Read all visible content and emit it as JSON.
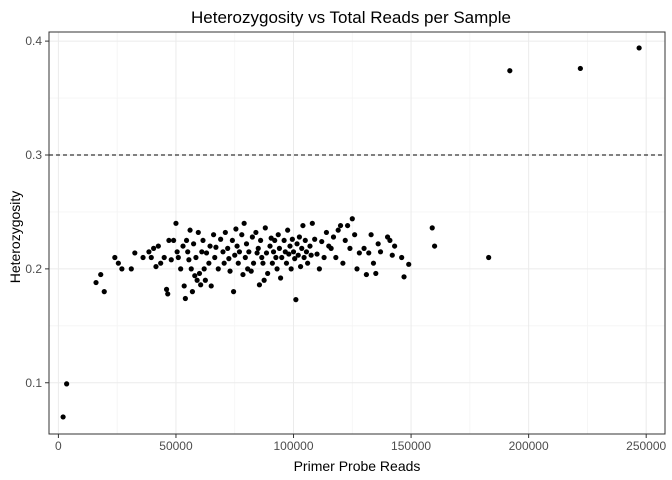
{
  "chart_data": {
    "type": "scatter",
    "title": "Heterozygosity vs Total Reads per Sample",
    "xlabel": "Primer Probe Reads",
    "ylabel": "Heterozygosity",
    "xlim": [
      -4000,
      258000
    ],
    "ylim": [
      0.055,
      0.408
    ],
    "x_ticks": [
      0,
      50000,
      100000,
      150000,
      200000,
      250000
    ],
    "x_tick_labels": [
      "0",
      "50000",
      "100000",
      "150000",
      "200000",
      "250000"
    ],
    "y_ticks": [
      0.1,
      0.2,
      0.3,
      0.4
    ],
    "y_tick_labels": [
      "0.1",
      "0.2",
      "0.3",
      "0.4"
    ],
    "grid": true,
    "reference_line": {
      "y": 0.3,
      "style": "dashed"
    },
    "points": [
      [
        2000,
        0.07
      ],
      [
        3500,
        0.099
      ],
      [
        16000,
        0.188
      ],
      [
        18000,
        0.195
      ],
      [
        19500,
        0.18
      ],
      [
        24000,
        0.21
      ],
      [
        25500,
        0.205
      ],
      [
        27000,
        0.2
      ],
      [
        31000,
        0.2
      ],
      [
        32500,
        0.214
      ],
      [
        36000,
        0.21
      ],
      [
        38500,
        0.215
      ],
      [
        39500,
        0.21
      ],
      [
        40500,
        0.218
      ],
      [
        41500,
        0.202
      ],
      [
        42500,
        0.22
      ],
      [
        43500,
        0.205
      ],
      [
        45000,
        0.21
      ],
      [
        46000,
        0.182
      ],
      [
        46500,
        0.178
      ],
      [
        47000,
        0.225
      ],
      [
        48000,
        0.208
      ],
      [
        49000,
        0.225
      ],
      [
        50000,
        0.24
      ],
      [
        50500,
        0.215
      ],
      [
        51000,
        0.21
      ],
      [
        52000,
        0.2
      ],
      [
        53000,
        0.22
      ],
      [
        53500,
        0.185
      ],
      [
        54000,
        0.174
      ],
      [
        54500,
        0.225
      ],
      [
        55000,
        0.215
      ],
      [
        55500,
        0.208
      ],
      [
        56000,
        0.234
      ],
      [
        56500,
        0.2
      ],
      [
        57000,
        0.18
      ],
      [
        57500,
        0.222
      ],
      [
        58000,
        0.194
      ],
      [
        58500,
        0.21
      ],
      [
        59000,
        0.19
      ],
      [
        59500,
        0.232
      ],
      [
        60000,
        0.196
      ],
      [
        60500,
        0.186
      ],
      [
        61000,
        0.215
      ],
      [
        61500,
        0.225
      ],
      [
        62000,
        0.2
      ],
      [
        62500,
        0.19
      ],
      [
        63000,
        0.214
      ],
      [
        64000,
        0.205
      ],
      [
        64500,
        0.22
      ],
      [
        65000,
        0.185
      ],
      [
        66000,
        0.23
      ],
      [
        66500,
        0.21
      ],
      [
        67000,
        0.219
      ],
      [
        68000,
        0.2
      ],
      [
        69000,
        0.226
      ],
      [
        70000,
        0.215
      ],
      [
        70500,
        0.205
      ],
      [
        71000,
        0.232
      ],
      [
        72000,
        0.218
      ],
      [
        72500,
        0.209
      ],
      [
        73000,
        0.198
      ],
      [
        74000,
        0.225
      ],
      [
        74500,
        0.18
      ],
      [
        75000,
        0.212
      ],
      [
        75500,
        0.235
      ],
      [
        76000,
        0.22
      ],
      [
        76500,
        0.205
      ],
      [
        77000,
        0.215
      ],
      [
        78000,
        0.23
      ],
      [
        78500,
        0.195
      ],
      [
        79000,
        0.24
      ],
      [
        79500,
        0.21
      ],
      [
        80000,
        0.222
      ],
      [
        80500,
        0.2
      ],
      [
        81000,
        0.215
      ],
      [
        82000,
        0.198
      ],
      [
        82500,
        0.228
      ],
      [
        83000,
        0.205
      ],
      [
        84000,
        0.232
      ],
      [
        84500,
        0.214
      ],
      [
        85000,
        0.218
      ],
      [
        85500,
        0.186
      ],
      [
        86000,
        0.225
      ],
      [
        86500,
        0.21
      ],
      [
        87000,
        0.205
      ],
      [
        87500,
        0.19
      ],
      [
        88000,
        0.236
      ],
      [
        88500,
        0.214
      ],
      [
        89000,
        0.196
      ],
      [
        90000,
        0.22
      ],
      [
        90500,
        0.227
      ],
      [
        91000,
        0.205
      ],
      [
        91500,
        0.215
      ],
      [
        92000,
        0.225
      ],
      [
        92500,
        0.21
      ],
      [
        93000,
        0.2
      ],
      [
        93500,
        0.23
      ],
      [
        94000,
        0.218
      ],
      [
        94500,
        0.192
      ],
      [
        95000,
        0.21
      ],
      [
        96000,
        0.225
      ],
      [
        96500,
        0.215
      ],
      [
        97000,
        0.205
      ],
      [
        97500,
        0.234
      ],
      [
        98000,
        0.213
      ],
      [
        98500,
        0.22
      ],
      [
        99000,
        0.2
      ],
      [
        99500,
        0.226
      ],
      [
        100000,
        0.215
      ],
      [
        100500,
        0.209
      ],
      [
        101000,
        0.173
      ],
      [
        101500,
        0.222
      ],
      [
        102000,
        0.212
      ],
      [
        102500,
        0.228
      ],
      [
        103000,
        0.202
      ],
      [
        103500,
        0.218
      ],
      [
        104000,
        0.238
      ],
      [
        104500,
        0.21
      ],
      [
        105000,
        0.225
      ],
      [
        105500,
        0.215
      ],
      [
        106000,
        0.205
      ],
      [
        107000,
        0.22
      ],
      [
        107500,
        0.212
      ],
      [
        108000,
        0.24
      ],
      [
        109000,
        0.226
      ],
      [
        110000,
        0.213
      ],
      [
        111000,
        0.2
      ],
      [
        112000,
        0.224
      ],
      [
        113000,
        0.21
      ],
      [
        114000,
        0.232
      ],
      [
        115000,
        0.22
      ],
      [
        116000,
        0.218
      ],
      [
        117000,
        0.228
      ],
      [
        118000,
        0.21
      ],
      [
        119000,
        0.234
      ],
      [
        120000,
        0.238
      ],
      [
        121000,
        0.205
      ],
      [
        122000,
        0.225
      ],
      [
        123000,
        0.238
      ],
      [
        124000,
        0.218
      ],
      [
        125000,
        0.244
      ],
      [
        126000,
        0.23
      ],
      [
        127000,
        0.2
      ],
      [
        128000,
        0.214
      ],
      [
        130000,
        0.218
      ],
      [
        131000,
        0.195
      ],
      [
        132000,
        0.214
      ],
      [
        133000,
        0.23
      ],
      [
        134000,
        0.205
      ],
      [
        135000,
        0.196
      ],
      [
        136000,
        0.222
      ],
      [
        137000,
        0.215
      ],
      [
        140000,
        0.228
      ],
      [
        141000,
        0.225
      ],
      [
        142000,
        0.212
      ],
      [
        143000,
        0.22
      ],
      [
        146000,
        0.21
      ],
      [
        147000,
        0.193
      ],
      [
        149000,
        0.204
      ],
      [
        159000,
        0.236
      ],
      [
        160000,
        0.22
      ],
      [
        183000,
        0.21
      ],
      [
        192000,
        0.374
      ],
      [
        222000,
        0.376
      ],
      [
        247000,
        0.394
      ]
    ]
  }
}
